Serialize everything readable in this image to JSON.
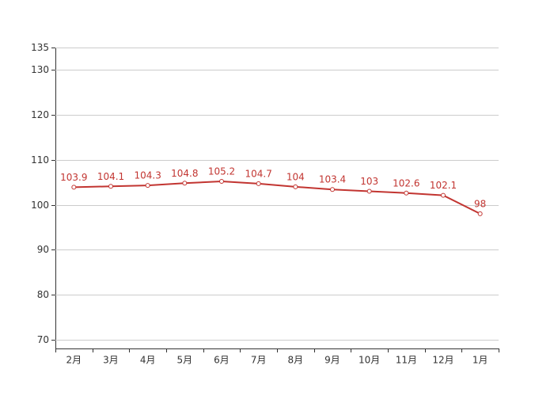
{
  "chart_data": {
    "type": "line",
    "categories": [
      "2月",
      "3月",
      "4月",
      "5月",
      "6月",
      "7月",
      "8月",
      "9月",
      "10月",
      "11月",
      "12月",
      "1月"
    ],
    "values": [
      103.9,
      104.1,
      104.3,
      104.8,
      105.2,
      104.7,
      104,
      103.4,
      103,
      102.6,
      102.1,
      98
    ],
    "color": "#c23531",
    "ylim": [
      68,
      135
    ],
    "yticks": [
      70,
      80,
      90,
      100,
      110,
      120,
      130,
      135
    ],
    "grid": true
  }
}
